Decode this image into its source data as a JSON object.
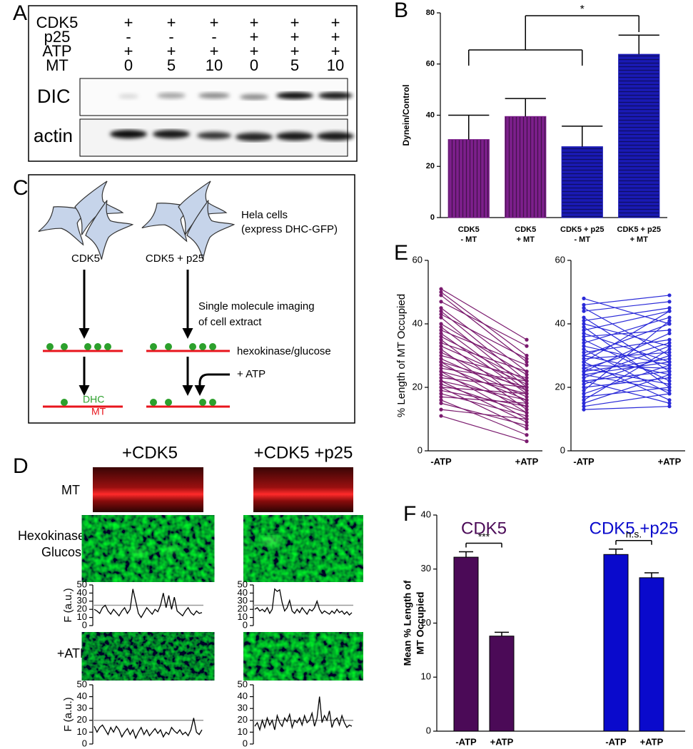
{
  "panel_labels": [
    "A",
    "B",
    "C",
    "D",
    "E",
    "F"
  ],
  "panel_a": {
    "rows": [
      {
        "label": "CDK5",
        "cells": [
          "+",
          "+",
          "+",
          "+",
          "+",
          "+"
        ]
      },
      {
        "label": "p25",
        "cells": [
          "-",
          "-",
          "-",
          "+",
          "+",
          "+"
        ]
      },
      {
        "label": "ATP",
        "cells": [
          "+",
          "+",
          "+",
          "+",
          "+",
          "+"
        ]
      },
      {
        "label": "MT",
        "cells": [
          0,
          5,
          10,
          0,
          5,
          10
        ]
      }
    ],
    "blots": [
      "DIC",
      "actin"
    ]
  },
  "panel_c": {
    "cells_label": [
      "Hela cells",
      "(express DHC-GFP)"
    ],
    "conditions": [
      "CDK5",
      "CDK5 + p25"
    ],
    "step": [
      "Single molecule imaging",
      "of cell extract"
    ],
    "hexokinase": "hexokinase/glucose",
    "atp": "+ ATP",
    "dhc": "DHC",
    "mt": "MT"
  },
  "panel_d": {
    "columns": [
      "+CDK5",
      "+CDK5 +p25"
    ],
    "rows": [
      "MT",
      [
        "Hexokinase/",
        "Glucose"
      ],
      "+ATP"
    ]
  },
  "chart_data": [
    {
      "type": "bar",
      "ylabel": "Dynein/Control",
      "categories": [
        [
          "CDK5",
          "- MT"
        ],
        [
          "CDK5",
          "+ MT"
        ],
        [
          "CDK5 + p25",
          "- MT"
        ],
        [
          "CDK5 + p25",
          "+ MT"
        ]
      ],
      "values": [
        30.5,
        39.5,
        27.7,
        63.8
      ],
      "errors": [
        9.5,
        7,
        8,
        7.5
      ],
      "colors": [
        "#7d1f8c",
        "#7d1f8c",
        "#1a1ab4",
        "#1a1ab4"
      ],
      "hatch": [
        "vertical",
        "vertical",
        "horizontal",
        "horizontal"
      ],
      "ylim": [
        0,
        80
      ],
      "yticks": [
        0,
        20,
        40,
        60,
        80
      ],
      "annotation": "*"
    },
    {
      "type": "paired",
      "ylabel": "% Length of MT Occupied",
      "categories": [
        "-ATP",
        "+ATP"
      ],
      "color": "#7a1a6e",
      "ylim": [
        0,
        60
      ],
      "yticks": [
        0,
        20,
        40,
        60
      ],
      "lines": [
        [
          51,
          35
        ],
        [
          50,
          30
        ],
        [
          49,
          28
        ],
        [
          47,
          33
        ],
        [
          45,
          25
        ],
        [
          44,
          22
        ],
        [
          43,
          29
        ],
        [
          42,
          20
        ],
        [
          40,
          24
        ],
        [
          39,
          19
        ],
        [
          38,
          27
        ],
        [
          37,
          18
        ],
        [
          36,
          22
        ],
        [
          35,
          15
        ],
        [
          34,
          25
        ],
        [
          33,
          21
        ],
        [
          32,
          13
        ],
        [
          31,
          19
        ],
        [
          30,
          23
        ],
        [
          29,
          17
        ],
        [
          28,
          12
        ],
        [
          28,
          20
        ],
        [
          27,
          16
        ],
        [
          26,
          22
        ],
        [
          25,
          10
        ],
        [
          25,
          18
        ],
        [
          24,
          14
        ],
        [
          23,
          20
        ],
        [
          22,
          9
        ],
        [
          22,
          16
        ],
        [
          21,
          12
        ],
        [
          20,
          18
        ],
        [
          20,
          7
        ],
        [
          19,
          14
        ],
        [
          18,
          11
        ],
        [
          17,
          15
        ],
        [
          16,
          5
        ],
        [
          15,
          8
        ],
        [
          13,
          10
        ],
        [
          11,
          3
        ]
      ]
    },
    {
      "type": "paired",
      "categories": [
        "-ATP",
        "+ATP"
      ],
      "color": "#2a2ad8",
      "ylim": [
        0,
        60
      ],
      "yticks": [
        0,
        20,
        40,
        60
      ],
      "lines": [
        [
          48,
          40
        ],
        [
          46,
          49
        ],
        [
          45,
          30
        ],
        [
          44,
          47
        ],
        [
          42,
          25
        ],
        [
          41,
          45
        ],
        [
          40,
          33
        ],
        [
          39,
          20
        ],
        [
          38,
          44
        ],
        [
          37,
          28
        ],
        [
          36,
          38
        ],
        [
          35,
          22
        ],
        [
          34,
          42
        ],
        [
          33,
          27
        ],
        [
          32,
          18
        ],
        [
          31,
          35
        ],
        [
          30,
          40
        ],
        [
          30,
          24
        ],
        [
          29,
          31
        ],
        [
          28,
          16
        ],
        [
          28,
          44
        ],
        [
          27,
          26
        ],
        [
          26,
          34
        ],
        [
          26,
          21
        ],
        [
          25,
          29
        ],
        [
          25,
          37
        ],
        [
          24,
          19
        ],
        [
          24,
          28
        ],
        [
          23,
          33
        ],
        [
          22,
          25
        ],
        [
          22,
          15
        ],
        [
          21,
          30
        ],
        [
          20,
          23
        ],
        [
          19,
          41
        ],
        [
          18,
          27
        ],
        [
          17,
          20
        ],
        [
          16,
          32
        ],
        [
          15,
          24
        ],
        [
          14,
          18
        ],
        [
          13,
          14
        ]
      ]
    },
    {
      "type": "grouped_bar",
      "ylabel": [
        "Mean % Length of",
        "MT Occupied"
      ],
      "ylim": [
        0,
        40
      ],
      "yticks": [
        0,
        10,
        20,
        30,
        40
      ],
      "series": [
        {
          "name": "CDK5",
          "color": "#4b0a57",
          "categories": [
            "-ATP",
            "+ATP"
          ],
          "values": [
            32.2,
            17.6
          ],
          "errors": [
            1.0,
            0.7
          ],
          "annotation": "***"
        },
        {
          "name": "CDK5 +p25",
          "color": "#0a0acc",
          "categories": [
            "-ATP",
            "+ATP"
          ],
          "values": [
            32.7,
            28.4
          ],
          "errors": [
            1.0,
            0.9
          ],
          "annotation": "n.s."
        }
      ]
    },
    {
      "type": "trace",
      "ylabel": "F (a.u.)",
      "ylim": [
        0,
        50
      ],
      "yticks": [
        0,
        10,
        20,
        30,
        40,
        50
      ],
      "threshold": 25,
      "values": [
        20,
        18,
        15,
        22,
        25,
        18,
        14,
        20,
        16,
        12,
        18,
        22,
        15,
        20,
        45,
        30,
        15,
        10,
        16,
        22,
        18,
        14,
        20,
        17,
        25,
        40,
        22,
        37,
        20,
        35,
        18,
        15,
        12,
        18,
        22,
        16,
        13,
        18,
        15,
        16
      ]
    },
    {
      "type": "trace",
      "ylim": [
        0,
        50
      ],
      "yticks": [
        0,
        10,
        20,
        30,
        40,
        50
      ],
      "threshold": 25,
      "values": [
        20,
        22,
        18,
        20,
        17,
        22,
        15,
        20,
        45,
        42,
        44,
        28,
        18,
        22,
        31,
        18,
        15,
        20,
        16,
        22,
        18,
        14,
        20,
        18,
        22,
        30,
        20,
        15,
        18,
        16,
        14,
        18,
        15,
        20,
        16,
        18,
        14,
        17,
        13,
        16
      ]
    },
    {
      "type": "trace",
      "ylabel": "F (a.u.)",
      "ylim": [
        0,
        50
      ],
      "yticks": [
        0,
        10,
        20,
        30,
        40,
        50
      ],
      "threshold": 20,
      "values": [
        15,
        10,
        14,
        16,
        12,
        8,
        14,
        10,
        15,
        12,
        6,
        10,
        13,
        8,
        12,
        5,
        10,
        14,
        8,
        12,
        7,
        10,
        13,
        9,
        12,
        6,
        10,
        8,
        14,
        11,
        9,
        12,
        8,
        10,
        7,
        12,
        22,
        10,
        8,
        12
      ]
    },
    {
      "type": "trace",
      "ylim": [
        0,
        50
      ],
      "yticks": [
        0,
        10,
        20,
        30,
        40,
        50
      ],
      "threshold": 20,
      "values": [
        15,
        18,
        12,
        20,
        14,
        22,
        16,
        20,
        12,
        24,
        18,
        15,
        22,
        19,
        25,
        14,
        20,
        18,
        22,
        16,
        24,
        18,
        20,
        26,
        15,
        22,
        40,
        18,
        24,
        20,
        28,
        14,
        20,
        22,
        16,
        24,
        18,
        14,
        16,
        15
      ]
    }
  ]
}
